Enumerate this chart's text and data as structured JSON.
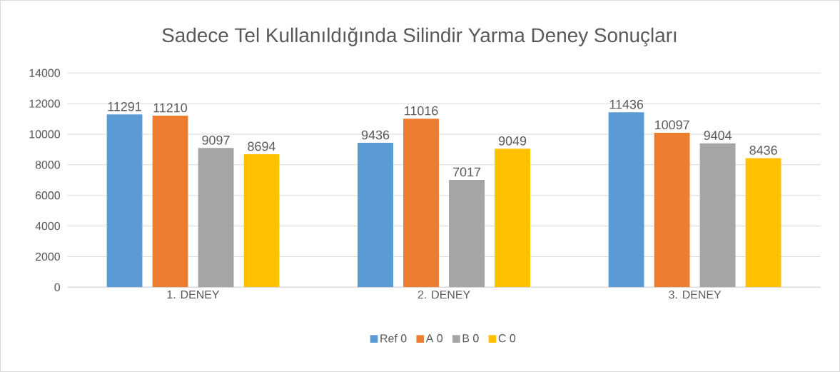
{
  "chart_data": {
    "type": "bar",
    "title": "Sadece Tel Kullanıldığında Silindir Yarma Deney Sonuçları",
    "categories": [
      "1. DENEY",
      "2. DENEY",
      "3. DENEY"
    ],
    "series": [
      {
        "name": "Ref 0",
        "color": "#5b9bd5",
        "values": [
          11291,
          9436,
          11436
        ]
      },
      {
        "name": "A 0",
        "color": "#ed7d31",
        "values": [
          11210,
          11016,
          10097
        ]
      },
      {
        "name": "B 0",
        "color": "#a5a5a5",
        "values": [
          9097,
          7017,
          9404
        ]
      },
      {
        "name": "C 0",
        "color": "#ffc000",
        "values": [
          8694,
          9049,
          8436
        ]
      }
    ],
    "ylim": [
      0,
      14000
    ],
    "yticks": [
      0,
      2000,
      4000,
      6000,
      8000,
      10000,
      12000,
      14000
    ],
    "grid": "y",
    "legend": "bottom",
    "data_labels": true
  }
}
